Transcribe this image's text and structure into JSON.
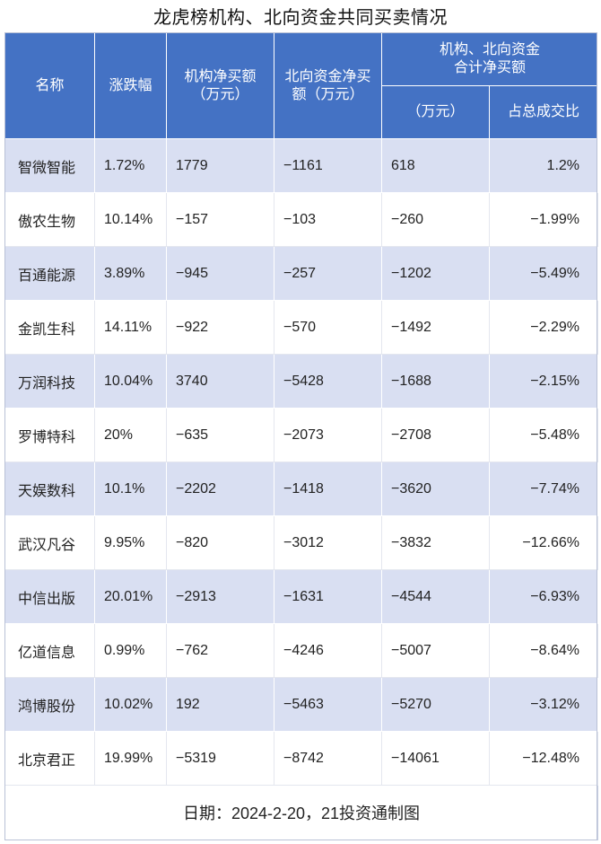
{
  "title": "龙虎榜机构、北向资金共同买卖情况",
  "headers": {
    "name": "名称",
    "change": "涨跌幅",
    "inst": "机构净买额\n（万元）",
    "north": "北向资金净买\n额（万元）",
    "combined": "机构、北向资金\n合计净买额",
    "combined_amount": "（万元）",
    "combined_ratio": "占总成交比"
  },
  "rows": [
    {
      "name": "智微智能",
      "change": "1.72%",
      "inst": "1779",
      "north": "−1161",
      "total": "618",
      "ratio": "1.2%"
    },
    {
      "name": "傲农生物",
      "change": "10.14%",
      "inst": "−157",
      "north": "−103",
      "total": "−260",
      "ratio": "−1.99%"
    },
    {
      "name": "百通能源",
      "change": "3.89%",
      "inst": "−945",
      "north": "−257",
      "total": "−1202",
      "ratio": "−5.49%"
    },
    {
      "name": "金凯生科",
      "change": "14.11%",
      "inst": "−922",
      "north": "−570",
      "total": "−1492",
      "ratio": "−2.29%"
    },
    {
      "name": "万润科技",
      "change": "10.04%",
      "inst": "3740",
      "north": "−5428",
      "total": "−1688",
      "ratio": "−2.15%"
    },
    {
      "name": "罗博特科",
      "change": "20%",
      "inst": "−635",
      "north": "−2073",
      "total": "−2708",
      "ratio": "−5.48%"
    },
    {
      "name": "天娱数科",
      "change": "10.1%",
      "inst": "−2202",
      "north": "−1418",
      "total": "−3620",
      "ratio": "−7.74%"
    },
    {
      "name": "武汉凡谷",
      "change": "9.95%",
      "inst": "−820",
      "north": "−3012",
      "total": "−3832",
      "ratio": "−12.66%"
    },
    {
      "name": "中信出版",
      "change": "20.01%",
      "inst": "−2913",
      "north": "−1631",
      "total": "−4544",
      "ratio": "−6.93%"
    },
    {
      "name": "亿道信息",
      "change": "0.99%",
      "inst": "−762",
      "north": "−4246",
      "total": "−5007",
      "ratio": "−8.64%"
    },
    {
      "name": "鸿博股份",
      "change": "10.02%",
      "inst": "192",
      "north": "−5463",
      "total": "−5270",
      "ratio": "−3.12%"
    },
    {
      "name": "北京君正",
      "change": "19.99%",
      "inst": "−5319",
      "north": "−8742",
      "total": "−14061",
      "ratio": "−12.48%"
    }
  ],
  "footer": "日期：2024-2-20，21投资通制图"
}
